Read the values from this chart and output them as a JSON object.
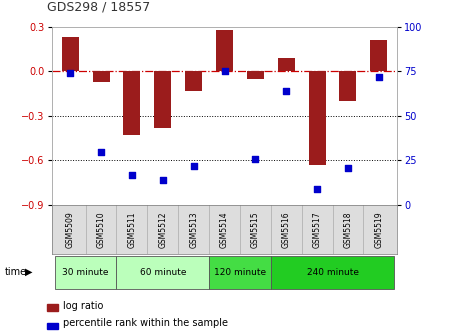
{
  "title": "GDS298 / 18557",
  "samples": [
    "GSM5509",
    "GSM5510",
    "GSM5511",
    "GSM5512",
    "GSM5513",
    "GSM5514",
    "GSM5515",
    "GSM5516",
    "GSM5517",
    "GSM5518",
    "GSM5519"
  ],
  "log_ratio": [
    0.23,
    -0.07,
    -0.43,
    -0.38,
    -0.13,
    0.28,
    -0.05,
    0.09,
    -0.63,
    -0.2,
    0.21
  ],
  "percentile": [
    74,
    30,
    17,
    14,
    22,
    75,
    26,
    64,
    9,
    21,
    72
  ],
  "ylim_left": [
    -0.9,
    0.3
  ],
  "ylim_right": [
    0,
    100
  ],
  "yticks_left": [
    -0.9,
    -0.6,
    -0.3,
    0.0,
    0.3
  ],
  "yticks_right": [
    0,
    25,
    50,
    75,
    100
  ],
  "bar_color": "#9B1C1C",
  "dot_color": "#0000CC",
  "dashed_line_color": "#CC0000",
  "grid_line_color": "#000000",
  "bg_color": "#ffffff",
  "plot_bg": "#ffffff",
  "time_groups": [
    {
      "label": "30 minute",
      "indices": [
        0,
        1
      ],
      "color": "#bbffbb"
    },
    {
      "label": "60 minute",
      "indices": [
        2,
        3,
        4
      ],
      "color": "#bbffbb"
    },
    {
      "label": "120 minute",
      "indices": [
        5,
        6
      ],
      "color": "#44dd44"
    },
    {
      "label": "240 minute",
      "indices": [
        7,
        8,
        9,
        10
      ],
      "color": "#22cc22"
    }
  ],
  "legend_log_ratio": "log ratio",
  "legend_percentile": "percentile rank within the sample",
  "time_label": "time"
}
